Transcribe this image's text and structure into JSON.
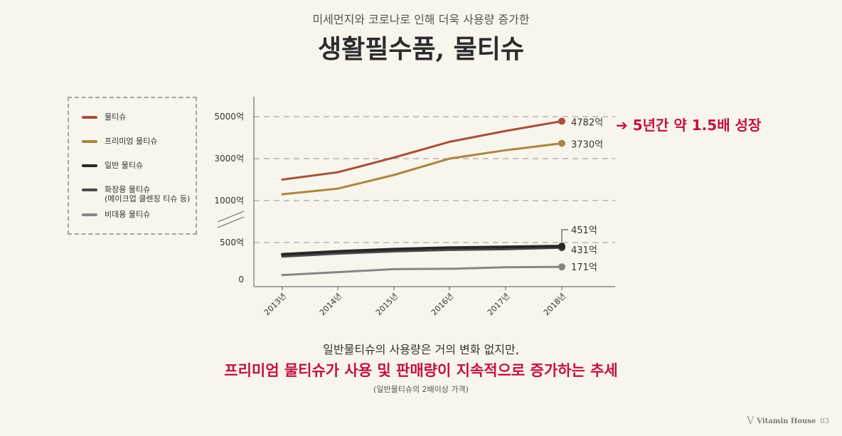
{
  "header": {
    "subtitle": "미세먼지와 코로나로 인해 더욱 사용량 증가한",
    "title": "생활필수품, 물티슈"
  },
  "legend": [
    {
      "label": "물티슈",
      "color": "#a8503a"
    },
    {
      "label": "프리미엄 물티슈",
      "color": "#a98743"
    },
    {
      "label": "일반 물티슈",
      "color": "#2b2623"
    },
    {
      "label": "화장용 물티슈\n(메이크업 클렌징 티슈 등)",
      "color": "#4a4a4a"
    },
    {
      "label": "비데용 물티슈",
      "color": "#868686"
    }
  ],
  "callout": "➔ 5년간 약 1.5배 성장",
  "chart_data": {
    "type": "line",
    "x": [
      "2013년",
      "2014년",
      "2015년",
      "2016년",
      "2017년",
      "2018년"
    ],
    "y_tick_labels": [
      "5000억",
      "3000억",
      "1000억",
      "500억",
      "0"
    ],
    "axis_break": true,
    "grid": "dashed horizontal",
    "series": [
      {
        "name": "물티슈",
        "color": "#a8503a",
        "values": [
          2000,
          2350,
          3050,
          3800,
          4320,
          4782
        ],
        "end_label": "4782억"
      },
      {
        "name": "프리미엄 물티슈",
        "color": "#a98743",
        "values": [
          1300,
          1570,
          2220,
          3000,
          3400,
          3730
        ],
        "end_label": "3730억"
      },
      {
        "name": "일반 물티슈",
        "color": "#2b2623",
        "values": [
          340,
          380,
          410,
          430,
          440,
          451
        ],
        "end_label": "451억"
      },
      {
        "name": "화장용 물티슈",
        "color": "#4a4a4a",
        "values": [
          310,
          350,
          380,
          400,
          410,
          431
        ],
        "end_label": "431억"
      },
      {
        "name": "비데용 물티슈",
        "color": "#868686",
        "values": [
          60,
          100,
          140,
          145,
          165,
          171
        ],
        "end_label": "171억"
      }
    ]
  },
  "footer": {
    "line1": "일반물티슈의 사용량은 거의 변화 없지만,",
    "line2": "프리미엄 물티슈가 사용 및 판매량이 지속적으로 증가하는 추세",
    "line3": "(일반물티슈의 2배이상 가격)"
  },
  "brand": {
    "name": "Vitamin House",
    "page": "03"
  }
}
